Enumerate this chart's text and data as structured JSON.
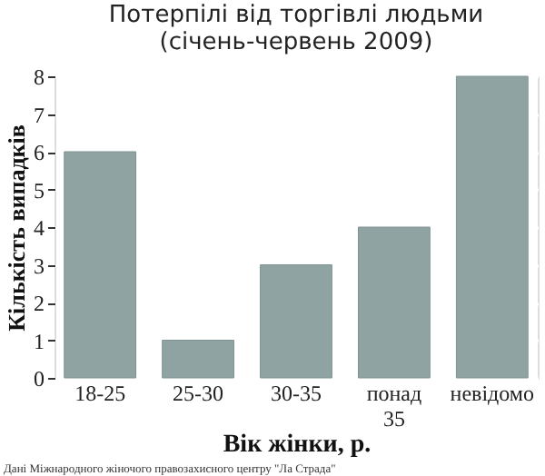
{
  "chart_data": {
    "type": "bar",
    "title": "Потерпілі від торгівлі людьми\n(січень-червень 2009)",
    "xlabel": "Вік жінки, р.",
    "ylabel": "Кількість випадків",
    "categories": [
      "18-25",
      "25-30",
      "30-35",
      "понад 35",
      "невідомо"
    ],
    "values": [
      6,
      1,
      3,
      4,
      8
    ],
    "color": "#8fa3a3",
    "ylim": [
      0,
      8
    ],
    "yticks": [
      0,
      1,
      2,
      3,
      4,
      5,
      6,
      7,
      8
    ],
    "grid": "y",
    "annotations": [
      "Дані Міжнародного жіночого правозахисного центру \"Ла Страда\""
    ]
  }
}
